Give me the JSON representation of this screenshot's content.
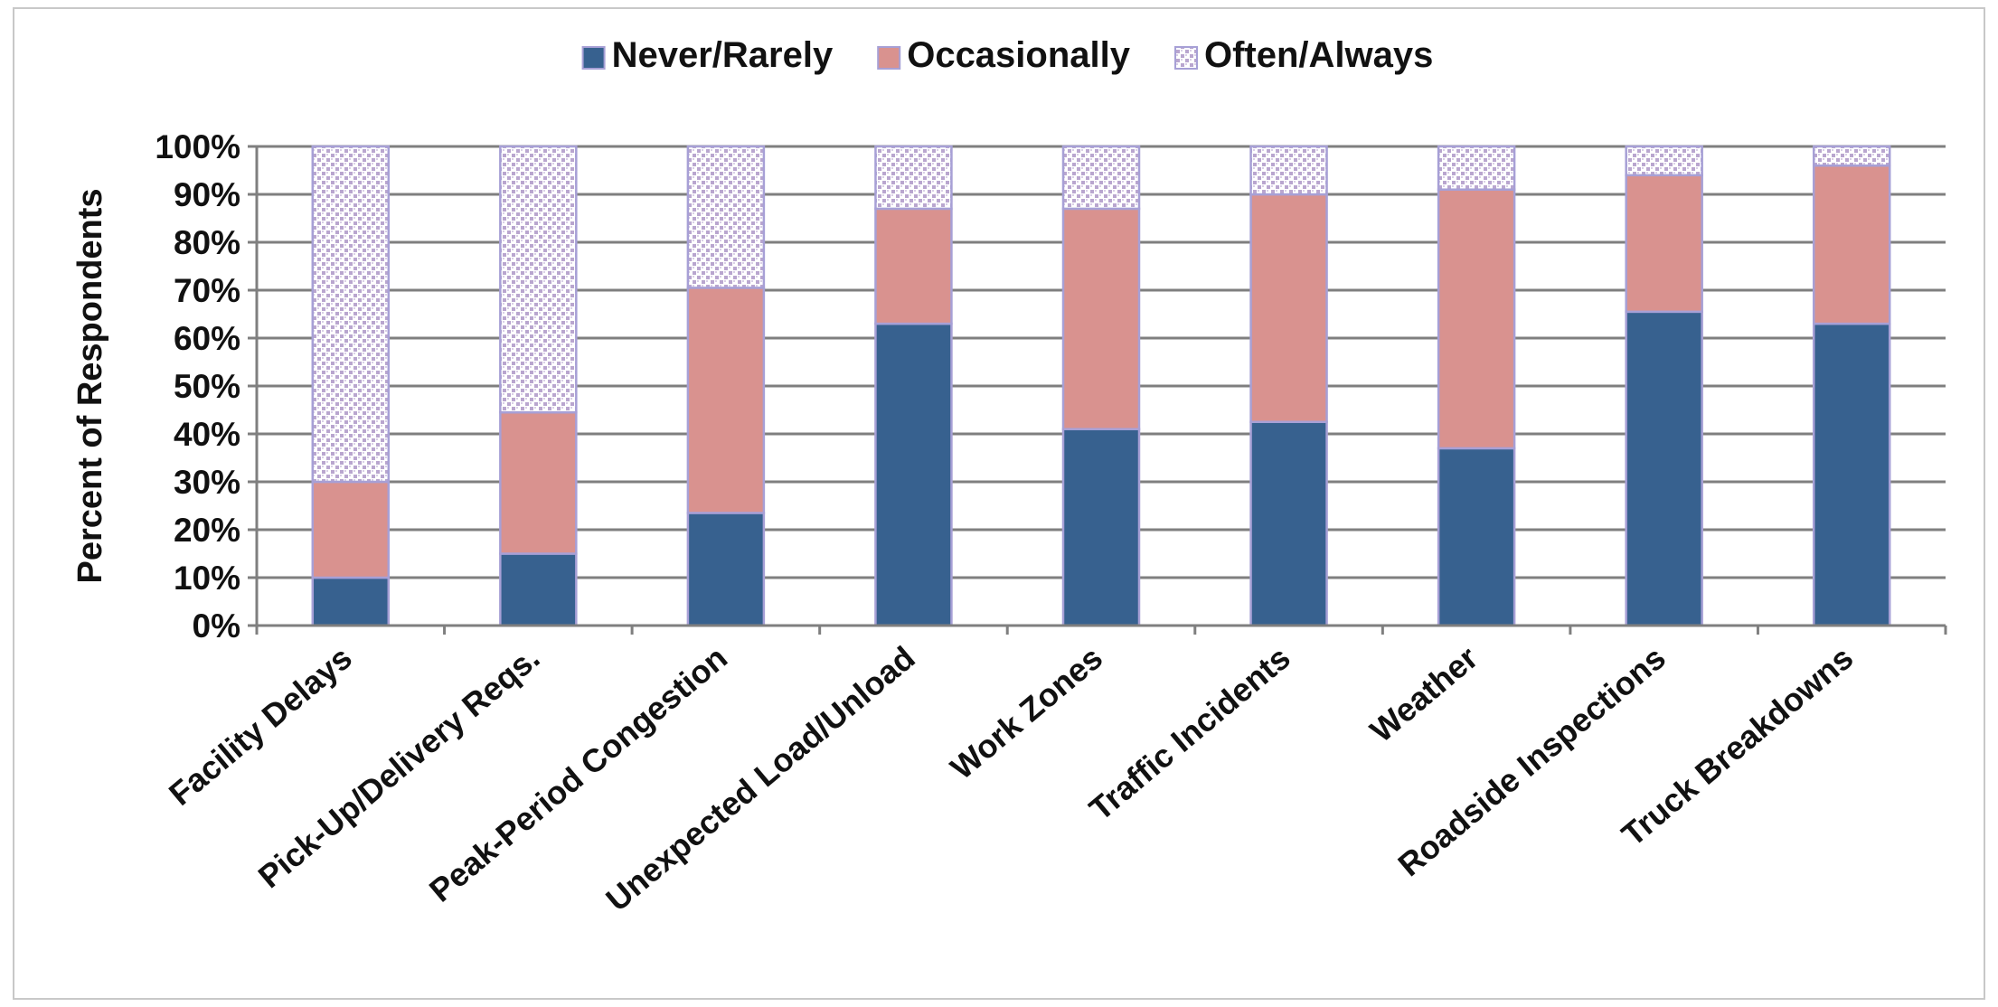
{
  "chart_data": {
    "type": "bar",
    "stacked": true,
    "ylabel": "Percent of Respondents",
    "xlabel": "",
    "ylim": [
      0,
      100
    ],
    "y_ticks": [
      "0%",
      "10%",
      "20%",
      "30%",
      "40%",
      "50%",
      "60%",
      "70%",
      "80%",
      "90%",
      "100%"
    ],
    "grid": true,
    "legend_position": "top-center",
    "categories": [
      "Facility Delays",
      "Pick-Up/Delivery Reqs.",
      "Peak-Period Congestion",
      "Unexpected Load/Unload",
      "Work Zones",
      "Traffic Incidents",
      "Weather",
      "Roadside Inspections",
      "Truck Breakdowns"
    ],
    "series": [
      {
        "name": "Never/Rarely",
        "color": "#37618f",
        "pattern": "solid",
        "values": [
          10,
          15,
          23.5,
          63,
          41,
          42.5,
          37,
          65.5,
          63
        ]
      },
      {
        "name": "Occasionally",
        "color": "#d9928f",
        "pattern": "solid",
        "values": [
          20,
          29.5,
          47,
          24,
          46,
          47.5,
          54,
          28.5,
          33
        ]
      },
      {
        "name": "Often/Always",
        "color": "#b9a6cf",
        "pattern": "dotted",
        "values": [
          70,
          55.5,
          29.5,
          13,
          13,
          10,
          9,
          6,
          4
        ]
      }
    ],
    "colors": {
      "grid": "#7f7f7f",
      "axis": "#7f7f7f",
      "bar_border": "#a7a0d6"
    }
  }
}
